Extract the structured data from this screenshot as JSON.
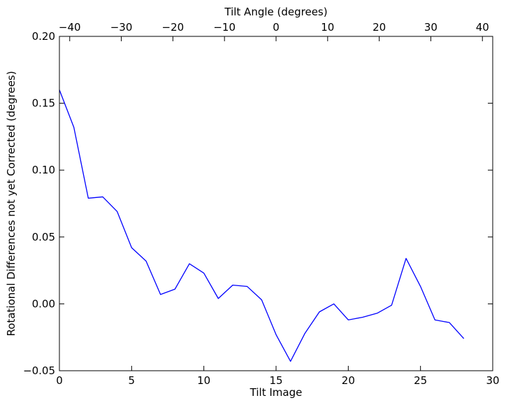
{
  "chart_data": {
    "type": "line",
    "xlabel": "Tilt Image",
    "ylabel": "Rotational Differences not yet Corrected (degrees)",
    "top_xlabel": "Tilt Angle (degrees)",
    "xlim": [
      0,
      30
    ],
    "ylim": [
      -0.05,
      0.2
    ],
    "top_xlim": [
      -42,
      42
    ],
    "x_ticks": [
      0,
      5,
      10,
      15,
      20,
      25,
      30
    ],
    "x_tick_labels": [
      "0",
      "5",
      "10",
      "15",
      "20",
      "25",
      "30"
    ],
    "y_ticks": [
      -0.05,
      0.0,
      0.05,
      0.1,
      0.15,
      0.2
    ],
    "y_tick_labels": [
      "−0.05",
      "0.00",
      "0.05",
      "0.10",
      "0.15",
      "0.20"
    ],
    "top_ticks": [
      -40,
      -30,
      -20,
      -10,
      0,
      10,
      20,
      30,
      40
    ],
    "top_tick_labels": [
      "−40",
      "−30",
      "−20",
      "−10",
      "0",
      "10",
      "20",
      "30",
      "40"
    ],
    "grid": false,
    "line_color": "#0000ff",
    "series": [
      {
        "x": [
          0,
          1,
          2,
          3,
          4,
          5,
          6,
          7,
          8,
          9,
          10,
          11,
          12,
          13,
          14,
          15,
          16,
          17,
          18,
          19,
          20,
          21,
          22,
          23,
          24,
          25,
          26,
          27,
          28
        ],
        "y": [
          0.16,
          0.132,
          0.079,
          0.08,
          0.069,
          0.042,
          0.032,
          0.007,
          0.011,
          0.03,
          0.023,
          0.004,
          0.014,
          0.013,
          0.003,
          -0.023,
          -0.043,
          -0.022,
          -0.006,
          0.0,
          -0.012,
          -0.01,
          -0.007,
          -0.001,
          0.034,
          0.013,
          -0.012,
          -0.014,
          -0.026
        ]
      }
    ]
  }
}
